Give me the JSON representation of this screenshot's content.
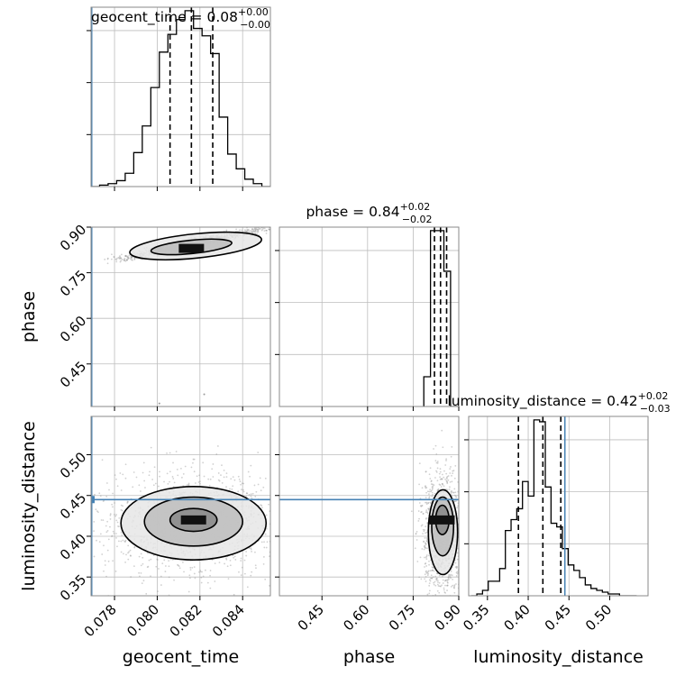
{
  "chart_data": {
    "type": "corner",
    "parameters": [
      {
        "key": "geocent_time",
        "xlabel": "geocent_time",
        "title": {
          "prefix": "geocent_time = ",
          "value": "0.08",
          "plus": "+0.00",
          "minus": "−0.00"
        },
        "range": [
          0.0769,
          0.0853
        ],
        "ticks": [
          0.078,
          0.08,
          0.082,
          0.084
        ],
        "tick_labels": [
          "0.078",
          "0.080",
          "0.082",
          "0.084"
        ],
        "truth": 0.0769,
        "quantiles": [
          0.0806,
          0.0816,
          0.0826
        ],
        "hist_edges": [
          0.0769,
          0.0773,
          0.0777,
          0.0781,
          0.0785,
          0.0789,
          0.0793,
          0.0797,
          0.0801,
          0.0805,
          0.0809,
          0.0813,
          0.0817,
          0.0821,
          0.0825,
          0.0829,
          0.0833,
          0.0837,
          0.0841,
          0.0845,
          0.0849,
          0.0853
        ],
        "hist_values": [
          0,
          1,
          2,
          4,
          9,
          23,
          41,
          67,
          91,
          103,
          113,
          119,
          107,
          102,
          90,
          47,
          22,
          12,
          5,
          2,
          0
        ]
      },
      {
        "key": "phase",
        "xlabel": "phase",
        "ylabel": "phase",
        "title": {
          "prefix": "phase = ",
          "value": "0.84",
          "plus": "+0.02",
          "minus": "−0.02"
        },
        "range": [
          0.31,
          0.9
        ],
        "ticks": [
          0.45,
          0.6,
          0.75,
          0.9
        ],
        "tick_labels": [
          "0.45",
          "0.60",
          "0.75",
          "0.90"
        ],
        "quantiles": [
          0.82,
          0.84,
          0.86
        ],
        "hist_edges": [
          0.785,
          0.807,
          0.829,
          0.851,
          0.873,
          0.895
        ],
        "hist_values": [
          22,
          130,
          130,
          100,
          0
        ]
      },
      {
        "key": "luminosity_distance",
        "xlabel": "luminosity_distance",
        "ylabel": "luminosity_distance",
        "title": {
          "prefix": "luminosity_distance = ",
          "value": "0.42",
          "plus": "+0.02",
          "minus": "−0.03"
        },
        "range": [
          0.327,
          0.547
        ],
        "ticks": [
          0.35,
          0.4,
          0.45,
          0.5
        ],
        "tick_labels": [
          "0.35",
          "0.40",
          "0.45",
          "0.50"
        ],
        "truth": 0.445,
        "quantiles": [
          0.388,
          0.418,
          0.44
        ],
        "hist_edges": [
          0.33,
          0.337,
          0.344,
          0.351,
          0.358,
          0.365,
          0.372,
          0.379,
          0.386,
          0.393,
          0.4,
          0.407,
          0.414,
          0.421,
          0.428,
          0.435,
          0.442,
          0.449,
          0.456,
          0.463,
          0.47,
          0.477,
          0.484,
          0.491,
          0.498,
          0.505,
          0.512,
          0.519,
          0.526,
          0.533
        ],
        "hist_values": [
          0,
          1,
          3,
          8,
          8,
          15,
          36,
          42,
          48,
          63,
          55,
          97,
          96,
          60,
          40,
          38,
          26,
          17,
          14,
          10,
          6,
          4,
          3,
          2,
          1,
          1,
          0,
          0,
          0
        ]
      }
    ],
    "pairs": [
      {
        "x": "geocent_time",
        "y": "phase",
        "peak": [
          0.0816,
          0.83
        ],
        "trend": {
          "from": [
            0.078,
            0.79
          ],
          "to": [
            0.0853,
            0.9
          ]
        },
        "contours": [
          {
            "cx": 0.0816,
            "cy": 0.835,
            "rx": 0.0019,
            "ry": 0.022,
            "angle": -0.1
          },
          {
            "cx": 0.0818,
            "cy": 0.838,
            "rx": 0.0031,
            "ry": 0.04,
            "angle": -0.1
          }
        ],
        "outliers": [
          [
            0.0822,
            0.35
          ],
          [
            0.0801,
            0.32
          ]
        ]
      },
      {
        "x": "geocent_time",
        "y": "luminosity_distance",
        "peak": [
          0.0817,
          0.42
        ],
        "contours": [
          {
            "cx": 0.0817,
            "cy": 0.42,
            "rx": 0.0011,
            "ry": 0.014
          },
          {
            "cx": 0.0817,
            "cy": 0.418,
            "rx": 0.0023,
            "ry": 0.03
          },
          {
            "cx": 0.0817,
            "cy": 0.416,
            "rx": 0.0034,
            "ry": 0.045
          }
        ]
      },
      {
        "x": "phase",
        "y": "luminosity_distance",
        "peak": [
          0.845,
          0.42
        ],
        "contours": [
          {
            "cx": 0.846,
            "cy": 0.42,
            "rx": 0.022,
            "ry": 0.018
          },
          {
            "cx": 0.847,
            "cy": 0.412,
            "rx": 0.036,
            "ry": 0.036
          },
          {
            "cx": 0.848,
            "cy": 0.405,
            "rx": 0.048,
            "ry": 0.052
          }
        ]
      }
    ],
    "colors": {
      "truth": "#4682b4",
      "hist": "#000000",
      "grid": "#bdbdbd",
      "points": "#9a9a9a"
    },
    "grid": true
  }
}
